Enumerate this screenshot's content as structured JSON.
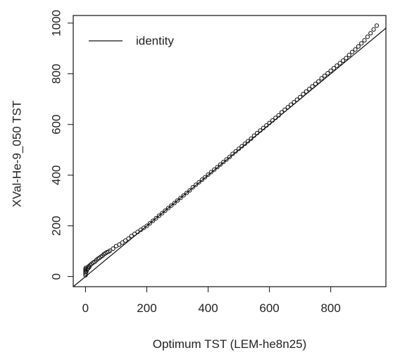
{
  "chart_data": {
    "type": "scatter",
    "xlabel": "Optimum TST (LEM-he8n25)",
    "ylabel": "XVal-He-9_050 TST",
    "xlim": [
      -40,
      980
    ],
    "ylim": [
      -40,
      1030
    ],
    "xticks": [
      0,
      200,
      400,
      600,
      800
    ],
    "yticks": [
      0,
      200,
      400,
      600,
      800,
      1000
    ],
    "xtick_labels": [
      "0",
      "200",
      "400",
      "600",
      "800"
    ],
    "ytick_labels": [
      "0",
      "200",
      "400",
      "600",
      "800",
      "1000"
    ],
    "legend": {
      "entries": [
        "identity"
      ],
      "location": "top-left"
    },
    "reference_line": {
      "name": "identity",
      "slope": 1,
      "intercept": 0
    },
    "series": [
      {
        "name": "points",
        "marker": "open-circle",
        "points": [
          [
            0,
            5
          ],
          [
            0,
            12
          ],
          [
            0,
            18
          ],
          [
            0,
            25
          ],
          [
            0,
            30
          ],
          [
            1,
            34
          ],
          [
            3,
            20
          ],
          [
            5,
            28
          ],
          [
            8,
            32
          ],
          [
            10,
            40
          ],
          [
            12,
            37
          ],
          [
            15,
            45
          ],
          [
            20,
            50
          ],
          [
            25,
            55
          ],
          [
            30,
            58
          ],
          [
            35,
            64
          ],
          [
            40,
            70
          ],
          [
            45,
            73
          ],
          [
            50,
            78
          ],
          [
            55,
            82
          ],
          [
            60,
            88
          ],
          [
            65,
            92
          ],
          [
            70,
            96
          ],
          [
            75,
            98
          ],
          [
            80,
            102
          ],
          [
            90,
            110
          ],
          [
            100,
            120
          ],
          [
            110,
            126
          ],
          [
            120,
            134
          ],
          [
            130,
            142
          ],
          [
            140,
            150
          ],
          [
            150,
            160
          ],
          [
            160,
            168
          ],
          [
            170,
            176
          ],
          [
            180,
            184
          ],
          [
            190,
            192
          ],
          [
            200,
            200
          ],
          [
            210,
            210
          ],
          [
            220,
            220
          ],
          [
            230,
            230
          ],
          [
            240,
            240
          ],
          [
            250,
            250
          ],
          [
            260,
            260
          ],
          [
            270,
            270
          ],
          [
            280,
            280
          ],
          [
            290,
            290
          ],
          [
            300,
            300
          ],
          [
            310,
            310
          ],
          [
            320,
            320
          ],
          [
            330,
            330
          ],
          [
            340,
            340
          ],
          [
            350,
            352
          ],
          [
            360,
            362
          ],
          [
            370,
            372
          ],
          [
            380,
            382
          ],
          [
            390,
            392
          ],
          [
            400,
            402
          ],
          [
            410,
            412
          ],
          [
            420,
            422
          ],
          [
            430,
            432
          ],
          [
            440,
            442
          ],
          [
            450,
            452
          ],
          [
            460,
            462
          ],
          [
            470,
            472
          ],
          [
            480,
            484
          ],
          [
            490,
            494
          ],
          [
            500,
            504
          ],
          [
            510,
            514
          ],
          [
            520,
            524
          ],
          [
            530,
            534
          ],
          [
            540,
            544
          ],
          [
            550,
            556
          ],
          [
            560,
            566
          ],
          [
            570,
            576
          ],
          [
            580,
            586
          ],
          [
            590,
            596
          ],
          [
            600,
            606
          ],
          [
            610,
            616
          ],
          [
            620,
            626
          ],
          [
            630,
            636
          ],
          [
            640,
            648
          ],
          [
            650,
            658
          ],
          [
            660,
            668
          ],
          [
            670,
            678
          ],
          [
            680,
            688
          ],
          [
            690,
            698
          ],
          [
            700,
            708
          ],
          [
            710,
            720
          ],
          [
            720,
            730
          ],
          [
            730,
            740
          ],
          [
            740,
            750
          ],
          [
            750,
            760
          ],
          [
            760,
            770
          ],
          [
            770,
            782
          ],
          [
            780,
            792
          ],
          [
            790,
            802
          ],
          [
            800,
            812
          ],
          [
            810,
            822
          ],
          [
            820,
            832
          ],
          [
            830,
            842
          ],
          [
            840,
            852
          ],
          [
            850,
            862
          ],
          [
            860,
            874
          ],
          [
            870,
            886
          ],
          [
            880,
            896
          ],
          [
            890,
            908
          ],
          [
            900,
            920
          ],
          [
            910,
            932
          ],
          [
            920,
            946
          ],
          [
            930,
            960
          ],
          [
            940,
            975
          ],
          [
            950,
            990
          ]
        ]
      }
    ]
  }
}
